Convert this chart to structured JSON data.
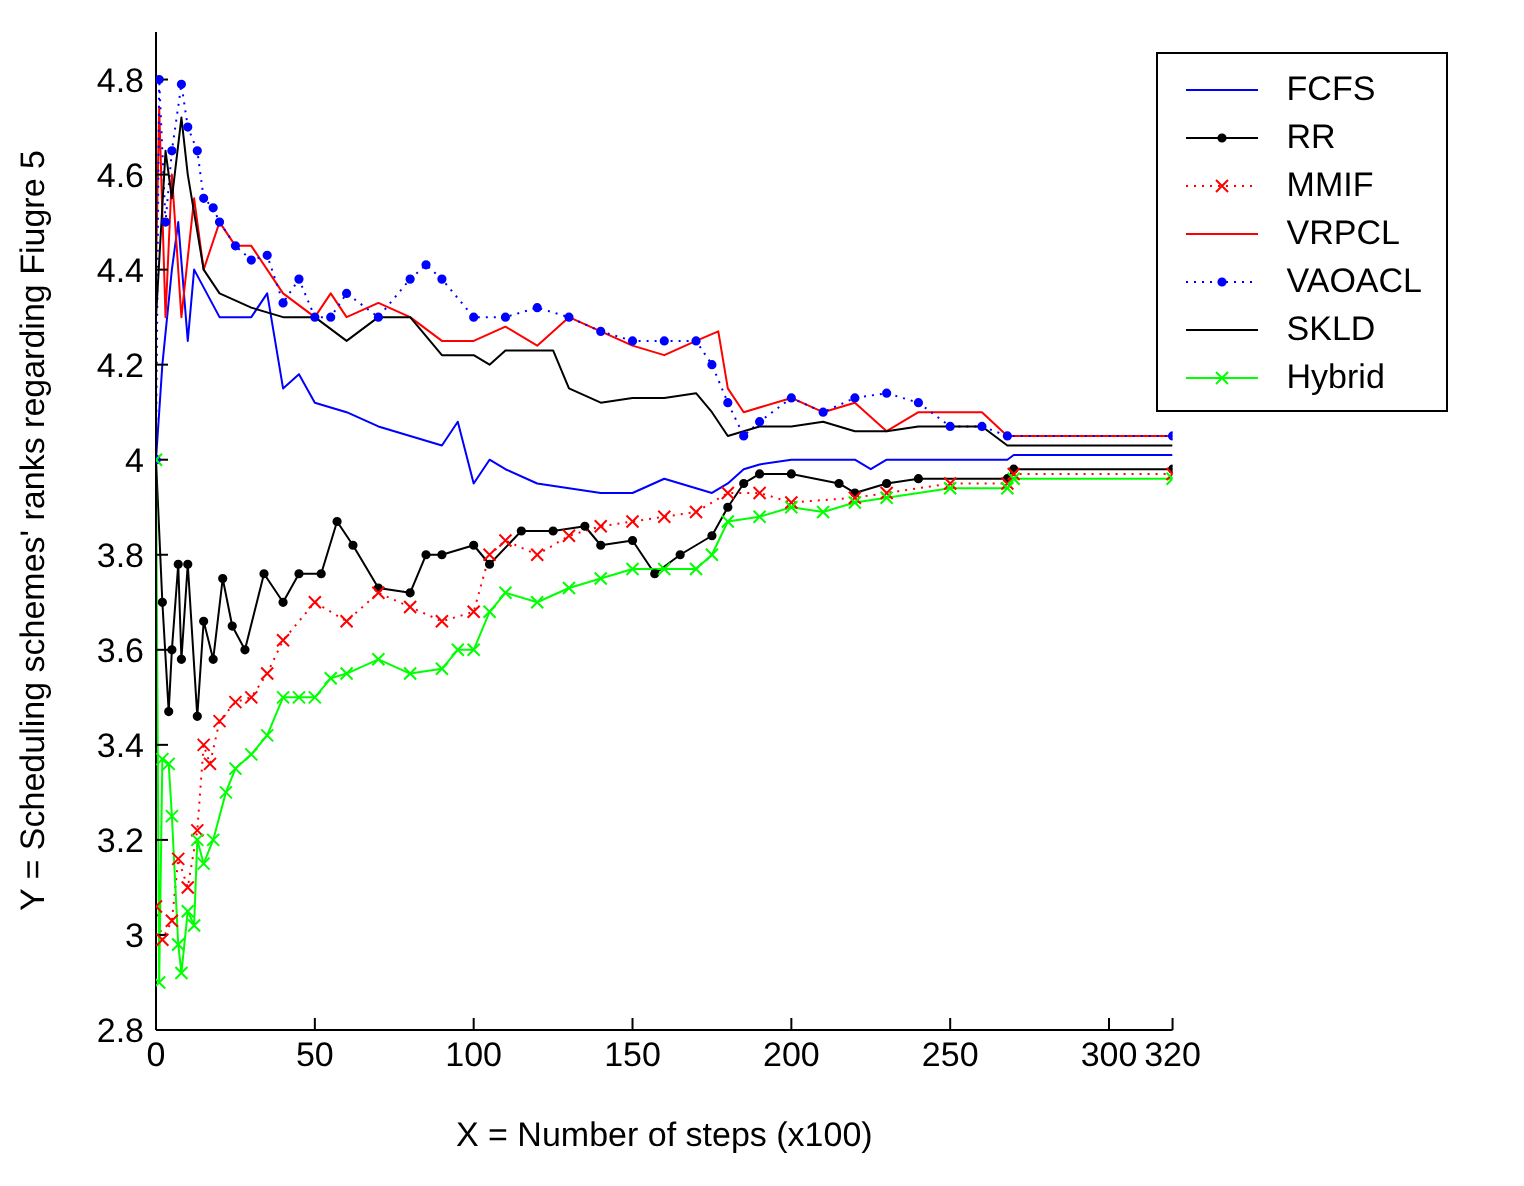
{
  "chart_data": {
    "type": "line",
    "xlabel": "X = Number of steps (x100)",
    "ylabel": "Y = Scheduling schemes' ranks regarding Fiugre 5",
    "xlim": [
      0,
      320
    ],
    "xticks": [
      0,
      50,
      100,
      150,
      200,
      250,
      300,
      320
    ],
    "ylim": [
      2.8,
      4.9
    ],
    "yticks": [
      2.8,
      3,
      3.2,
      3.4,
      3.6,
      3.8,
      4,
      4.2,
      4.4,
      4.6,
      4.8
    ],
    "legend": "top right",
    "series": [
      {
        "name": "FCFS",
        "color": "#0000ff",
        "marker": "none",
        "line_style": "solid",
        "x": [
          0,
          2,
          5,
          7,
          10,
          12,
          20,
          30,
          35,
          40,
          45,
          50,
          60,
          70,
          80,
          90,
          95,
          100,
          105,
          110,
          120,
          130,
          140,
          150,
          160,
          170,
          175,
          180,
          185,
          190,
          200,
          220,
          225,
          230,
          268,
          270,
          320
        ],
        "values": [
          4.0,
          4.2,
          4.4,
          4.5,
          4.25,
          4.4,
          4.3,
          4.3,
          4.35,
          4.15,
          4.18,
          4.12,
          4.1,
          4.07,
          4.05,
          4.03,
          4.08,
          3.95,
          4.0,
          3.98,
          3.95,
          3.94,
          3.93,
          3.93,
          3.96,
          3.94,
          3.93,
          3.95,
          3.98,
          3.99,
          4.0,
          4.0,
          3.98,
          4.0,
          4.0,
          4.01,
          4.01
        ]
      },
      {
        "name": "RR",
        "color": "#000000",
        "marker": "circle",
        "line_style": "solid",
        "x": [
          0,
          2,
          4,
          5,
          7,
          8,
          10,
          13,
          15,
          18,
          21,
          24,
          28,
          34,
          40,
          45,
          52,
          57,
          62,
          70,
          80,
          85,
          90,
          100,
          105,
          115,
          125,
          135,
          140,
          150,
          157,
          165,
          175,
          180,
          185,
          190,
          200,
          215,
          220,
          230,
          240,
          268,
          270,
          320
        ],
        "values": [
          4.0,
          3.7,
          3.47,
          3.6,
          3.78,
          3.58,
          3.78,
          3.46,
          3.66,
          3.58,
          3.75,
          3.65,
          3.6,
          3.76,
          3.7,
          3.76,
          3.76,
          3.87,
          3.82,
          3.73,
          3.72,
          3.8,
          3.8,
          3.82,
          3.78,
          3.85,
          3.85,
          3.86,
          3.82,
          3.83,
          3.76,
          3.8,
          3.84,
          3.9,
          3.95,
          3.97,
          3.97,
          3.95,
          3.93,
          3.95,
          3.96,
          3.96,
          3.98,
          3.98
        ]
      },
      {
        "name": "MMIF",
        "color": "#ff0000",
        "marker": "cross",
        "line_style": "dotted",
        "x": [
          0,
          2,
          5,
          7,
          10,
          13,
          15,
          17,
          20,
          25,
          30,
          35,
          40,
          50,
          60,
          70,
          80,
          90,
          100,
          105,
          110,
          120,
          130,
          140,
          150,
          160,
          170,
          180,
          190,
          200,
          220,
          230,
          250,
          268,
          270,
          320
        ],
        "values": [
          3.06,
          2.99,
          3.03,
          3.16,
          3.1,
          3.22,
          3.4,
          3.36,
          3.45,
          3.49,
          3.5,
          3.55,
          3.62,
          3.7,
          3.66,
          3.72,
          3.69,
          3.66,
          3.68,
          3.8,
          3.83,
          3.8,
          3.84,
          3.86,
          3.87,
          3.88,
          3.89,
          3.93,
          3.93,
          3.91,
          3.92,
          3.93,
          3.95,
          3.95,
          3.97,
          3.97
        ]
      },
      {
        "name": "VRPCL",
        "color": "#ff0000",
        "marker": "none",
        "line_style": "solid",
        "x": [
          0,
          1,
          3,
          5,
          8,
          12,
          15,
          20,
          25,
          30,
          40,
          50,
          55,
          60,
          70,
          80,
          90,
          100,
          110,
          120,
          130,
          140,
          150,
          160,
          170,
          177,
          180,
          185,
          200,
          210,
          220,
          230,
          240,
          260,
          268,
          320
        ],
        "values": [
          4.4,
          4.74,
          4.3,
          4.6,
          4.3,
          4.55,
          4.4,
          4.5,
          4.45,
          4.45,
          4.35,
          4.3,
          4.35,
          4.3,
          4.33,
          4.3,
          4.25,
          4.25,
          4.28,
          4.24,
          4.3,
          4.27,
          4.24,
          4.22,
          4.25,
          4.27,
          4.15,
          4.1,
          4.13,
          4.1,
          4.12,
          4.06,
          4.1,
          4.1,
          4.05,
          4.05
        ]
      },
      {
        "name": "VAOACL",
        "color": "#0000ff",
        "marker": "circle",
        "line_style": "dotted",
        "x": [
          0,
          1,
          3,
          5,
          8,
          10,
          13,
          15,
          18,
          20,
          25,
          30,
          35,
          40,
          45,
          50,
          55,
          60,
          70,
          80,
          85,
          90,
          100,
          110,
          120,
          130,
          140,
          150,
          160,
          170,
          175,
          180,
          185,
          190,
          200,
          210,
          220,
          230,
          240,
          250,
          260,
          268,
          320
        ],
        "values": [
          4.0,
          4.8,
          4.5,
          4.65,
          4.79,
          4.7,
          4.65,
          4.55,
          4.53,
          4.5,
          4.45,
          4.42,
          4.43,
          4.33,
          4.38,
          4.3,
          4.3,
          4.35,
          4.3,
          4.38,
          4.41,
          4.38,
          4.3,
          4.3,
          4.32,
          4.3,
          4.27,
          4.25,
          4.25,
          4.25,
          4.2,
          4.12,
          4.05,
          4.08,
          4.13,
          4.1,
          4.13,
          4.14,
          4.12,
          4.07,
          4.07,
          4.05,
          4.05
        ]
      },
      {
        "name": "SKLD",
        "color": "#000000",
        "marker": "none",
        "line_style": "solid",
        "x": [
          0,
          3,
          5,
          8,
          10,
          15,
          20,
          30,
          40,
          50,
          60,
          70,
          80,
          90,
          100,
          105,
          110,
          125,
          130,
          140,
          150,
          160,
          170,
          175,
          180,
          190,
          200,
          210,
          220,
          230,
          240,
          260,
          268,
          320
        ],
        "values": [
          4.3,
          4.65,
          4.55,
          4.72,
          4.6,
          4.4,
          4.35,
          4.32,
          4.3,
          4.3,
          4.25,
          4.3,
          4.3,
          4.22,
          4.22,
          4.2,
          4.23,
          4.23,
          4.15,
          4.12,
          4.13,
          4.13,
          4.14,
          4.1,
          4.05,
          4.07,
          4.07,
          4.08,
          4.06,
          4.06,
          4.07,
          4.07,
          4.03,
          4.03
        ]
      },
      {
        "name": "Hybrid",
        "color": "#00ff00",
        "marker": "cross",
        "line_style": "solid",
        "x": [
          0,
          1,
          2,
          4,
          5,
          7,
          8,
          10,
          12,
          13,
          15,
          18,
          22,
          25,
          30,
          35,
          40,
          45,
          50,
          55,
          60,
          70,
          80,
          90,
          95,
          100,
          105,
          110,
          120,
          130,
          140,
          150,
          160,
          170,
          175,
          180,
          190,
          200,
          210,
          220,
          230,
          250,
          268,
          270,
          320
        ],
        "values": [
          4.0,
          2.9,
          3.37,
          3.36,
          3.25,
          2.98,
          2.92,
          3.05,
          3.02,
          3.2,
          3.15,
          3.2,
          3.3,
          3.35,
          3.38,
          3.42,
          3.5,
          3.5,
          3.5,
          3.54,
          3.55,
          3.58,
          3.55,
          3.56,
          3.6,
          3.6,
          3.68,
          3.72,
          3.7,
          3.73,
          3.75,
          3.77,
          3.77,
          3.77,
          3.8,
          3.87,
          3.88,
          3.9,
          3.89,
          3.91,
          3.92,
          3.94,
          3.94,
          3.96,
          3.96
        ]
      }
    ]
  }
}
